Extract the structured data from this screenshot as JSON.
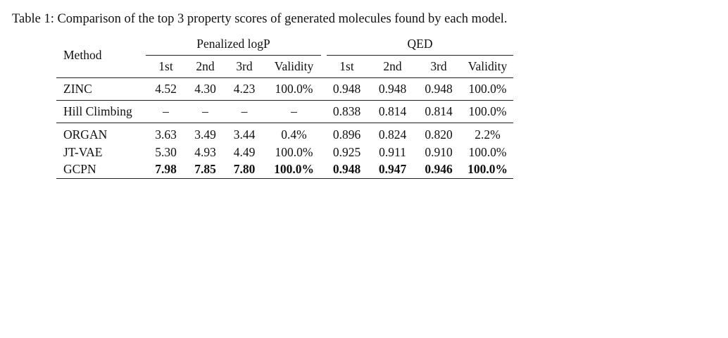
{
  "caption": "Table 1: Comparison of the top 3 property scores of generated molecules found by each model.",
  "header": {
    "method": "Method",
    "groups": [
      "Penalized logP",
      "QED"
    ],
    "subcolumns": [
      "1st",
      "2nd",
      "3rd",
      "Validity",
      "1st",
      "2nd",
      "3rd",
      "Validity"
    ]
  },
  "rows": [
    {
      "method": "ZINC",
      "values": [
        "4.52",
        "4.30",
        "4.23",
        "100.0%",
        "0.948",
        "0.948",
        "0.948",
        "100.0%"
      ]
    },
    {
      "method": "Hill Climbing",
      "values": [
        "–",
        "–",
        "–",
        "–",
        "0.838",
        "0.814",
        "0.814",
        "100.0%"
      ]
    },
    {
      "method": "ORGAN",
      "values": [
        "3.63",
        "3.49",
        "3.44",
        "0.4%",
        "0.896",
        "0.824",
        "0.820",
        "2.2%"
      ]
    },
    {
      "method": "JT-VAE",
      "values": [
        "5.30",
        "4.93",
        "4.49",
        "100.0%",
        "0.925",
        "0.911",
        "0.910",
        "100.0%"
      ]
    },
    {
      "method": "GCPN",
      "values": [
        "7.98",
        "7.85",
        "7.80",
        "100.0%",
        "0.948",
        "0.947",
        "0.946",
        "100.0%"
      ],
      "bold": true
    }
  ]
}
